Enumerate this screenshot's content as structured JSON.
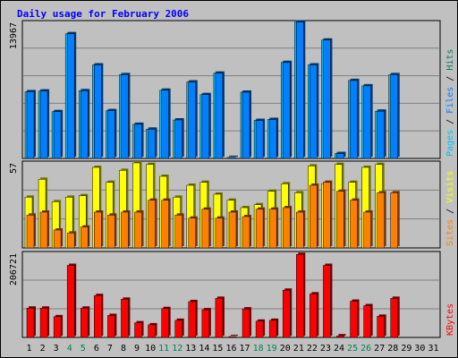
{
  "chart_data": {
    "type": "bar",
    "title": "Daily usage for February 2006",
    "days": [
      "1",
      "2",
      "3",
      "4",
      "5",
      "6",
      "7",
      "8",
      "9",
      "10",
      "11",
      "12",
      "13",
      "14",
      "15",
      "16",
      "17",
      "18",
      "19",
      "20",
      "21",
      "22",
      "23",
      "24",
      "25",
      "26",
      "27",
      "28",
      "29",
      "30",
      "31"
    ],
    "weekend_days": [
      "4",
      "5",
      "11",
      "12",
      "18",
      "19",
      "25",
      "26"
    ],
    "colors": {
      "background": "#c0c0c0",
      "hits": "#00c0ff",
      "files": "#0080ff",
      "sites": "#ff8000",
      "visits": "#ffff00",
      "kbytes": "#ff0000",
      "weekday_label": "#000000",
      "weekend_label": "#00805c",
      "title": "#0000ff"
    },
    "panels": [
      {
        "axis_max_label": "13967",
        "ymax": 13967,
        "side_labels": [
          {
            "text": "Pages",
            "color": "#00c0ff"
          },
          {
            "text": " / ",
            "color": "#000000"
          },
          {
            "text": "Files",
            "color": "#0080ff"
          },
          {
            "text": " / ",
            "color": "#000000"
          },
          {
            "text": "Hits",
            "color": "#00805c"
          }
        ],
        "series": [
          {
            "name": "Hits",
            "color": "#00c0ff",
            "values": [
              6850,
              6920,
              4800,
              12800,
              6950,
              9600,
              4900,
              8600,
              3500,
              3000,
              7000,
              3950,
              7850,
              6550,
              8750,
              100,
              6800,
              3900,
              4000,
              9850,
              14000,
              9600,
              12150,
              500,
              8000,
              7450,
              4850,
              8600,
              0,
              0,
              0
            ]
          },
          {
            "name": "Files",
            "color": "#0080ff",
            "values": [
              6850,
              6920,
              4800,
              12800,
              6950,
              9600,
              4900,
              8600,
              3500,
              3000,
              7000,
              3950,
              7850,
              6550,
              8750,
              100,
              6800,
              3900,
              4000,
              9850,
              14000,
              9600,
              12150,
              500,
              8000,
              7450,
              4850,
              8600,
              0,
              0,
              0
            ]
          }
        ]
      },
      {
        "axis_max_label": "57",
        "ymax": 57,
        "side_labels": [
          {
            "text": "Sites",
            "color": "#ff8000"
          },
          {
            "text": " / ",
            "color": "#000000"
          },
          {
            "text": "Visits",
            "color": "#ffff00"
          }
        ],
        "series": [
          {
            "name": "Visits",
            "color": "#ffff00",
            "values": [
              34,
              46,
              31,
              34,
              35,
              54,
              44,
              52,
              57,
              56,
              48,
              34,
              42,
              44,
              36,
              32,
              27,
              29,
              38,
              43,
              37,
              55,
              43,
              56,
              44,
              54,
              56,
              0,
              0,
              0,
              0
            ]
          },
          {
            "name": "Sites",
            "color": "#ff8000",
            "values": [
              22,
              24,
              12,
              10,
              14,
              24,
              22,
              24,
              24,
              32,
              32,
              22,
              20,
              26,
              20,
              24,
              21,
              26,
              26,
              27,
              24,
              42,
              44,
              38,
              32,
              24,
              37,
              37,
              0,
              0,
              0
            ]
          }
        ]
      },
      {
        "axis_max_label": "206721",
        "ymax": 206721,
        "side_labels": [
          {
            "text": "KBytes",
            "color": "#ff0000"
          }
        ],
        "series": [
          {
            "name": "KBytes",
            "color": "#ff0000",
            "values": [
              72000,
              72000,
              51000,
              177000,
              72000,
              103000,
              54000,
              94000,
              36000,
              31000,
              71000,
              42000,
              88000,
              68000,
              96000,
              1000,
              70000,
              40000,
              42000,
              116000,
              204000,
              107000,
              177000,
              4000,
              89000,
              78000,
              52000,
              96000,
              0,
              0,
              0
            ]
          }
        ]
      }
    ]
  }
}
